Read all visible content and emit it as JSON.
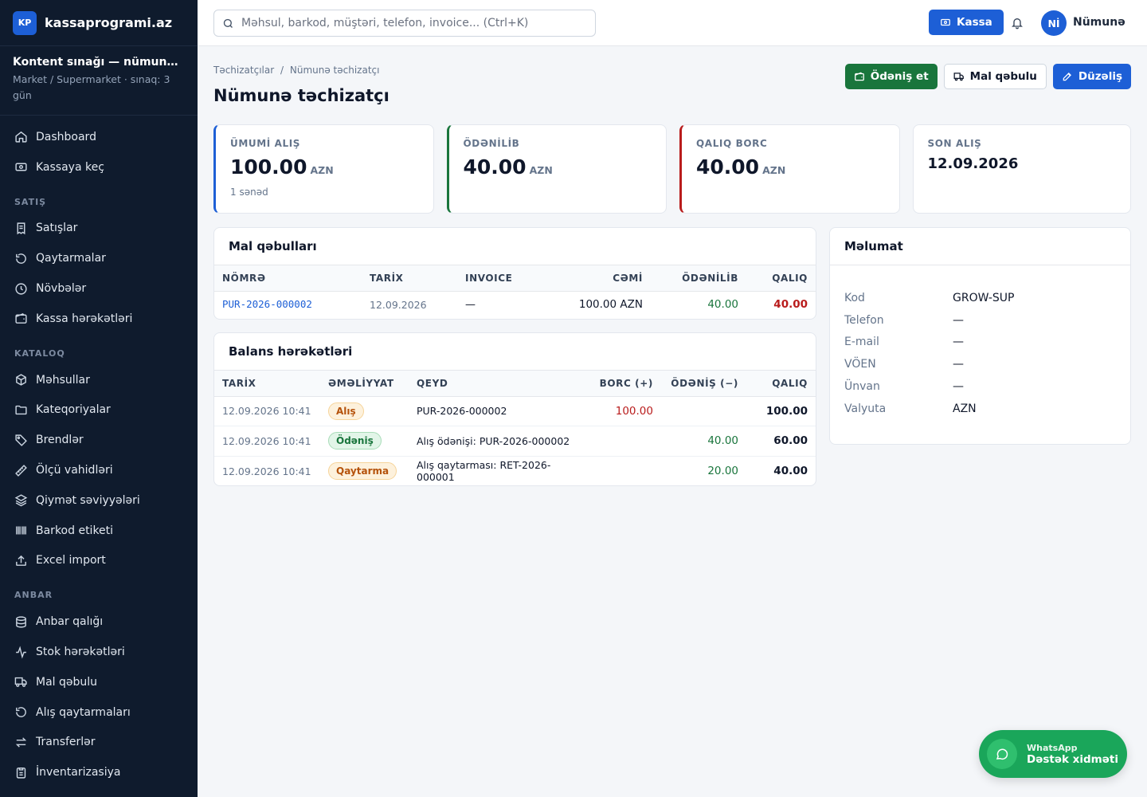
{
  "brand": {
    "logo": "KP",
    "name": "kassaprogrami.az"
  },
  "tenant": {
    "name": "Kontent sınağı — nümun…",
    "sub": "Market / Supermarket · sınaq: 3 gün"
  },
  "nav": {
    "top": [
      {
        "label": "Dashboard",
        "icon": "home-icon"
      },
      {
        "label": "Kassaya keç",
        "icon": "cash-icon"
      }
    ],
    "sections": [
      {
        "title": "SATIŞ",
        "items": [
          {
            "label": "Satışlar",
            "icon": "receipt-icon"
          },
          {
            "label": "Qaytarmalar",
            "icon": "undo-icon"
          },
          {
            "label": "Növbələr",
            "icon": "clock-icon"
          },
          {
            "label": "Kassa hərəkətləri",
            "icon": "wallet-icon"
          }
        ]
      },
      {
        "title": "KATALOQ",
        "items": [
          {
            "label": "Məhsullar",
            "icon": "box-icon"
          },
          {
            "label": "Kateqoriyalar",
            "icon": "folder-icon"
          },
          {
            "label": "Brendlər",
            "icon": "tag-icon"
          },
          {
            "label": "Ölçü vahidləri",
            "icon": "ruler-icon"
          },
          {
            "label": "Qiymət səviyyələri",
            "icon": "layers-icon"
          },
          {
            "label": "Barkod etiketi",
            "icon": "barcode-icon"
          },
          {
            "label": "Excel import",
            "icon": "upload-icon"
          }
        ]
      },
      {
        "title": "ANBAR",
        "items": [
          {
            "label": "Anbar qalığı",
            "icon": "database-icon"
          },
          {
            "label": "Stok hərəkətləri",
            "icon": "activity-icon"
          },
          {
            "label": "Mal qəbulu",
            "icon": "truck-icon"
          },
          {
            "label": "Alış qaytarmaları",
            "icon": "undo-icon"
          },
          {
            "label": "Transferlər",
            "icon": "transfer-icon"
          },
          {
            "label": "İnventarizasiya",
            "icon": "clipboard-icon"
          }
        ]
      }
    ]
  },
  "topbar": {
    "search_placeholder": "Məhsul, barkod, müştəri, telefon, invoice... (Ctrl+K)",
    "kassa_label": "Kassa",
    "avatar_initials": "Nİ",
    "user_name": "Nümunə"
  },
  "breadcrumb": {
    "parent": "Təchizatçılar",
    "separator": "/",
    "current": "Nümunə təchizatçı"
  },
  "page_title": "Nümunə təchizatçı",
  "actions": {
    "pay": "Ödəniş et",
    "receive": "Mal qəbulu",
    "edit": "Düzəliş"
  },
  "stats": {
    "total": {
      "label": "ÜMUMİ ALIŞ",
      "value": "100.00",
      "currency": "AZN",
      "sub": "1 sənəd"
    },
    "paid": {
      "label": "ÖDƏNİLİB",
      "value": "40.00",
      "currency": "AZN"
    },
    "debt": {
      "label": "QALIQ BORC",
      "value": "40.00",
      "currency": "AZN"
    },
    "last": {
      "label": "SON ALIŞ",
      "value": "12.09.2026"
    }
  },
  "receipts": {
    "title": "Mal qəbulları",
    "headers": [
      "NÖMRƏ",
      "TARİX",
      "INVOICE",
      "CƏMİ",
      "ÖDƏNİLİB",
      "QALIQ"
    ],
    "rows": [
      {
        "number": "PUR-2026-000002",
        "date": "12.09.2026",
        "invoice": "—",
        "total": "100.00 AZN",
        "paid": "40.00",
        "remaining": "40.00"
      }
    ]
  },
  "balance": {
    "title": "Balans hərəkətləri",
    "headers": [
      "TARİX",
      "ƏMƏLİYYAT",
      "QEYD",
      "BORC (+)",
      "ÖDƏNİŞ (−)",
      "QALIQ"
    ],
    "rows": [
      {
        "date": "12.09.2026 10:41",
        "op": "Alış",
        "note": "PUR-2026-000002",
        "debt": "100.00",
        "payment": "",
        "remaining": "100.00"
      },
      {
        "date": "12.09.2026 10:41",
        "op": "Ödəniş",
        "note": "Alış ödənişi: PUR-2026-000002",
        "debt": "",
        "payment": "40.00",
        "remaining": "60.00"
      },
      {
        "date": "12.09.2026 10:41",
        "op": "Qaytarma",
        "note": "Alış qaytarması: RET-2026-000001",
        "debt": "",
        "payment": "20.00",
        "remaining": "40.00"
      }
    ]
  },
  "info": {
    "title": "Məlumat",
    "rows": [
      {
        "key": "Kod",
        "value": "GROW-SUP"
      },
      {
        "key": "Telefon",
        "value": "—"
      },
      {
        "key": "E-mail",
        "value": "—"
      },
      {
        "key": "VÖEN",
        "value": "—"
      },
      {
        "key": "Ünvan",
        "value": "—"
      },
      {
        "key": "Valyuta",
        "value": "AZN"
      }
    ]
  },
  "support": {
    "small": "WhatsApp",
    "big": "Dəstək xidməti"
  },
  "colors": {
    "accent": "#1d5fd6",
    "sidebar": "#0f1b2d",
    "success": "#19753c",
    "danger": "#b91c1c",
    "warning": "#b5520b"
  }
}
